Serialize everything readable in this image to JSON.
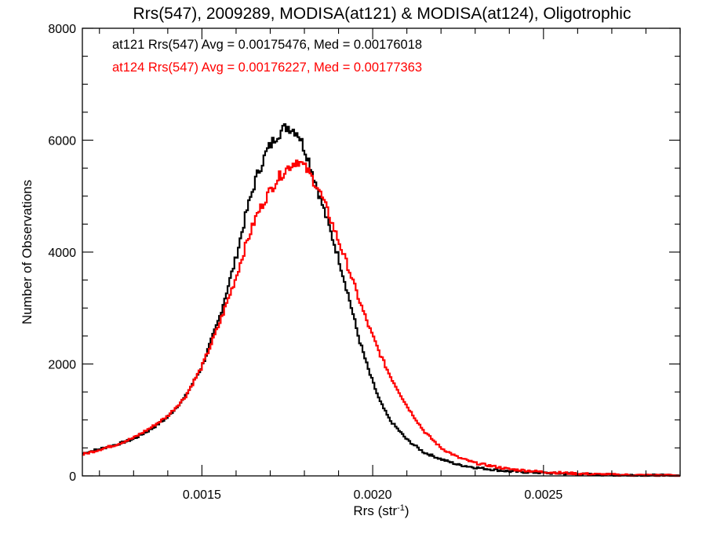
{
  "chart_data": {
    "type": "line",
    "step": true,
    "title": "Rrs(547), 2009289, MODISA(at121) & MODISA(at124), Oligotrophic",
    "xlabel": "Rrs (str",
    "xlabel_sup": "-1",
    "xlabel_close": ")",
    "ylabel": "Number of Observations",
    "xlim": [
      0.00115,
      0.0029
    ],
    "ylim": [
      0,
      8000
    ],
    "xticks": [
      {
        "value": 0.0015,
        "label": "0.0015"
      },
      {
        "value": 0.002,
        "label": "0.0020"
      },
      {
        "value": 0.0025,
        "label": "0.0025"
      }
    ],
    "yticks": [
      {
        "value": 0,
        "label": "0"
      },
      {
        "value": 2000,
        "label": "2000"
      },
      {
        "value": 4000,
        "label": "4000"
      },
      {
        "value": 6000,
        "label": "6000"
      },
      {
        "value": 8000,
        "label": "8000"
      }
    ],
    "grid": false,
    "legend_position": "top-left",
    "legend_entries": [
      {
        "text": "at121 Rrs(547) Avg = 0.00175476, Med = 0.00176018",
        "color": "#000000"
      },
      {
        "text": "at124 Rrs(547) Avg = 0.00176227, Med = 0.00177363",
        "color": "#ff0000"
      }
    ],
    "series": [
      {
        "color": "#000000",
        "x": [
          0.00115,
          0.0012,
          0.00125,
          0.0013,
          0.00135,
          0.0014,
          0.00145,
          0.0015,
          0.00155,
          0.0016,
          0.00163,
          0.00166,
          0.00169,
          0.00172,
          0.00175,
          0.00178,
          0.00181,
          0.00184,
          0.00187,
          0.0019,
          0.00193,
          0.00196,
          0.00199,
          0.00202,
          0.00205,
          0.0021,
          0.00215,
          0.0022,
          0.00225,
          0.0023,
          0.0024,
          0.0025,
          0.0026,
          0.0027,
          0.0028,
          0.0029
        ],
        "y": [
          400,
          480,
          560,
          660,
          830,
          1050,
          1400,
          1950,
          2800,
          3900,
          4700,
          5350,
          5800,
          6100,
          6250,
          6150,
          5700,
          5100,
          4500,
          3900,
          3200,
          2450,
          1850,
          1350,
          1000,
          650,
          420,
          300,
          200,
          150,
          80,
          55,
          30,
          20,
          10,
          5
        ]
      },
      {
        "color": "#ff0000",
        "x": [
          0.00115,
          0.0012,
          0.00125,
          0.0013,
          0.00135,
          0.0014,
          0.00145,
          0.0015,
          0.00155,
          0.0016,
          0.00163,
          0.00166,
          0.00169,
          0.00172,
          0.00175,
          0.00178,
          0.00181,
          0.00184,
          0.00187,
          0.0019,
          0.00193,
          0.00196,
          0.00199,
          0.00202,
          0.00205,
          0.0021,
          0.00215,
          0.0022,
          0.00225,
          0.0023,
          0.0024,
          0.0025,
          0.0026,
          0.0027,
          0.0028,
          0.0029
        ],
        "y": [
          380,
          470,
          560,
          680,
          860,
          1070,
          1400,
          1950,
          2700,
          3550,
          4150,
          4650,
          5000,
          5300,
          5500,
          5650,
          5450,
          5150,
          4700,
          4200,
          3700,
          3150,
          2650,
          2200,
          1800,
          1250,
          800,
          500,
          330,
          230,
          120,
          70,
          40,
          20,
          10,
          5
        ]
      }
    ]
  }
}
